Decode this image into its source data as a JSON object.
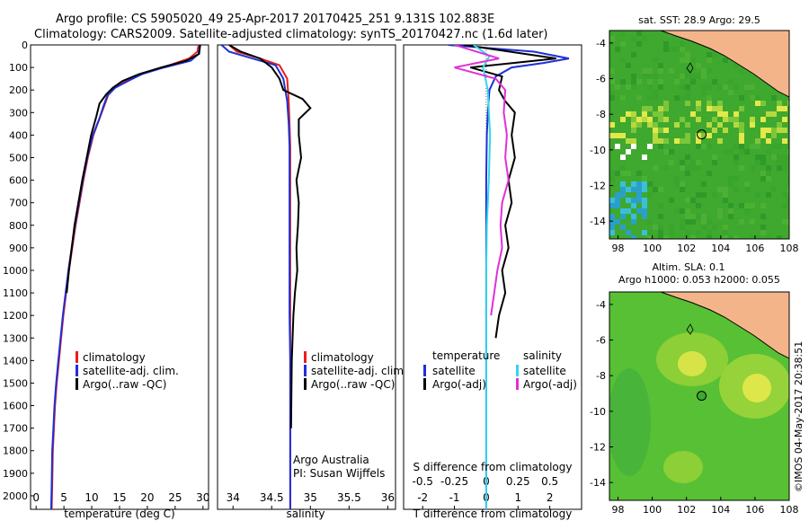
{
  "header": {
    "line1": "Argo profile: CS 5905020_49 25-Apr-2017 20170425_251 9.131S 102.883E",
    "line2": "Climatology: CARS2009. Satellite-adjusted climatology: synTS_20170427.nc (1.6d later)"
  },
  "footer": {
    "credit": "©IMOS 04-May-2017 20:38:51",
    "argo_line1": "Argo Australia",
    "argo_line2": "PI: Susan Wijffels"
  },
  "colors": {
    "climatology": "#e8201a",
    "satellite": "#1f2fd6",
    "argo": "#000000",
    "sat_salinity": "#33d6ee",
    "argo_salinity": "#e030d8",
    "land": "#f4b48a"
  },
  "chart_data": [
    {
      "type": "line",
      "panel": "temperature",
      "xlabel": "temperature (deg C)",
      "ylabel": "",
      "xlim": [
        -1,
        31
      ],
      "ylim": [
        2060,
        0
      ],
      "xticks": [
        0,
        5,
        10,
        15,
        20,
        25,
        30
      ],
      "yticks": [
        0,
        100,
        200,
        300,
        400,
        500,
        600,
        700,
        800,
        900,
        1000,
        1100,
        1200,
        1300,
        1400,
        1500,
        1600,
        1700,
        1800,
        1900,
        2000
      ],
      "legend": [
        "climatology",
        "satellite-adj. clim.",
        "Argo(..raw -QC)"
      ],
      "series": [
        {
          "name": "climatology",
          "color": "red",
          "x": [
            29.2,
            29.0,
            27.5,
            24,
            20,
            17,
            14.5,
            13,
            12.4,
            11.5,
            10.3,
            9.3,
            8.5,
            7.8,
            7.1,
            6.5,
            5.9,
            5.4,
            4.9,
            4.5,
            4.1,
            3.7,
            3.4,
            3.2,
            3.0,
            2.9,
            2.8
          ],
          "y": [
            0,
            30,
            60,
            90,
            120,
            150,
            180,
            220,
            260,
            320,
            400,
            500,
            600,
            700,
            800,
            900,
            1000,
            1100,
            1200,
            1300,
            1400,
            1500,
            1600,
            1700,
            1800,
            1950,
            2060
          ]
        },
        {
          "name": "satellite-adj. clim.",
          "color": "blue",
          "x": [
            29.4,
            29.2,
            27.8,
            23,
            19,
            16.5,
            14.2,
            12.8,
            12.2,
            11.4,
            10.2,
            9.2,
            8.4,
            7.7,
            7.0,
            6.4,
            5.8,
            5.3,
            4.8,
            4.4,
            4.0,
            3.6,
            3.3,
            3.1,
            2.9,
            2.8,
            2.7
          ],
          "y": [
            0,
            40,
            70,
            100,
            130,
            160,
            190,
            225,
            265,
            325,
            400,
            500,
            600,
            700,
            800,
            900,
            1000,
            1100,
            1200,
            1300,
            1400,
            1500,
            1600,
            1700,
            1800,
            1950,
            2060
          ]
        },
        {
          "name": "Argo(..raw -QC)",
          "color": "black",
          "x": [
            29.5,
            29.3,
            27.0,
            22.5,
            18.5,
            15.5,
            13.8,
            12.6,
            11.4,
            10.8,
            9.9,
            9.1,
            8.3,
            7.6,
            6.9,
            6.4,
            5.9,
            5.5
          ],
          "y": [
            0,
            40,
            70,
            100,
            130,
            160,
            190,
            220,
            260,
            320,
            400,
            500,
            600,
            700,
            800,
            900,
            1000,
            1100
          ]
        }
      ]
    },
    {
      "type": "line",
      "panel": "salinity",
      "xlabel": "salinity",
      "xlim": [
        33.8,
        36.1
      ],
      "ylim": [
        2060,
        0
      ],
      "xticks": [
        34,
        34.5,
        35,
        35.5,
        36
      ],
      "legend": [
        "climatology",
        "satellite-adj. clim.",
        "Argo(..raw -QC)"
      ],
      "series": [
        {
          "name": "climatology",
          "color": "red",
          "x": [
            33.95,
            34.05,
            34.35,
            34.6,
            34.7,
            34.72,
            34.73,
            34.74,
            34.74,
            34.74,
            34.74,
            34.74,
            34.74,
            34.74,
            34.74,
            34.74,
            34.74,
            34.74
          ],
          "y": [
            0,
            30,
            60,
            90,
            150,
            250,
            350,
            450,
            600,
            800,
            1000,
            1200,
            1400,
            1600,
            1800,
            1900,
            2000,
            2060
          ]
        },
        {
          "name": "satellite-adj. clim.",
          "color": "blue",
          "x": [
            33.85,
            33.95,
            34.25,
            34.55,
            34.65,
            34.7,
            34.72,
            34.73,
            34.73,
            34.73,
            34.73,
            34.73,
            34.74,
            34.74,
            34.74,
            34.74,
            34.74
          ],
          "y": [
            0,
            30,
            60,
            90,
            150,
            250,
            350,
            450,
            600,
            800,
            1000,
            1200,
            1400,
            1600,
            1800,
            1950,
            2060
          ]
        },
        {
          "name": "Argo(..raw -QC)",
          "color": "black",
          "x": [
            33.95,
            34.1,
            34.35,
            34.5,
            34.6,
            34.65,
            34.9,
            35.0,
            34.85,
            34.85,
            34.88,
            34.82,
            34.85,
            34.84,
            34.82,
            34.83,
            34.8,
            34.78,
            34.76,
            34.75
          ],
          "y": [
            0,
            30,
            60,
            100,
            150,
            200,
            240,
            280,
            330,
            400,
            500,
            600,
            700,
            800,
            900,
            1000,
            1100,
            1200,
            1400,
            1700
          ]
        }
      ]
    },
    {
      "type": "line",
      "panel": "difference",
      "xlabel": "T difference from climatology",
      "x2label": "S difference from climatology",
      "xlim": [
        -2.6,
        3.0
      ],
      "ylim": [
        2060,
        0
      ],
      "xticks": [
        -2,
        -1,
        0,
        1,
        2
      ],
      "x2ticks": [
        -0.5,
        -0.25,
        0,
        0.25,
        0.5
      ],
      "x2tick_labels": [
        "-0.5",
        "-0.25",
        "0",
        "0.25",
        "0.5"
      ],
      "legend_temperature_title": "temperature",
      "legend_salinity_title": "salinity",
      "legend": [
        "satellite",
        "Argo(-adj)",
        "satellite",
        "Argo(-adj)"
      ],
      "series": [
        {
          "name": "satellite",
          "group": "temperature",
          "color": "blue",
          "x": [
            -1.2,
            1.5,
            2.6,
            1.8,
            0.8,
            0.3,
            0.1,
            0.05,
            0.02,
            0,
            0,
            0,
            0,
            0,
            0,
            0
          ],
          "y": [
            0,
            30,
            60,
            80,
            100,
            140,
            200,
            300,
            400,
            600,
            800,
            1000,
            1300,
            1600,
            1900,
            2060
          ]
        },
        {
          "name": "Argo(-adj)",
          "group": "temperature",
          "color": "black",
          "x": [
            -0.7,
            2.2,
            -0.5,
            0.5,
            0.4,
            0.6,
            0.9,
            0.8,
            0.9,
            0.7,
            0.8,
            0.6,
            0.7,
            0.5,
            0.6,
            0.4,
            0.3
          ],
          "y": [
            0,
            60,
            100,
            140,
            200,
            250,
            300,
            400,
            500,
            600,
            700,
            800,
            900,
            1000,
            1100,
            1200,
            1300
          ]
        },
        {
          "name": "satellite",
          "group": "salinity",
          "color": "cyan",
          "x": [
            -0.4,
            0.1,
            -0.1,
            0.05,
            0.12,
            0.08,
            0.05,
            0.02,
            0.01,
            0,
            0,
            0,
            0,
            0
          ],
          "y": [
            0,
            50,
            100,
            200,
            400,
            600,
            700,
            800,
            900,
            1000,
            1200,
            1500,
            1800,
            2060
          ]
        },
        {
          "name": "Argo(-adj)",
          "group": "salinity",
          "color": "magenta",
          "x": [
            -1.0,
            0.4,
            -1.0,
            0.3,
            0.6,
            0.55,
            0.65,
            0.6,
            0.7,
            0.5,
            0.45,
            0.5,
            0.35,
            0.25,
            0.15
          ],
          "y": [
            0,
            60,
            100,
            150,
            200,
            300,
            400,
            500,
            600,
            700,
            800,
            900,
            1000,
            1100,
            1200
          ]
        }
      ]
    },
    {
      "type": "heatmap",
      "panel": "sst_map",
      "title": "sat. SST: 28.9 Argo: 29.5",
      "xlim": [
        97.5,
        108
      ],
      "ylim": [
        -15,
        -3.3
      ],
      "xticks": [
        98,
        100,
        102,
        104,
        106,
        108
      ],
      "yticks": [
        -4,
        -6,
        -8,
        -10,
        -12,
        -14
      ],
      "marker": {
        "lon": 102.883,
        "lat": -9.131
      }
    },
    {
      "type": "heatmap",
      "panel": "sla_map",
      "title": "Altim. SLA: 0.1",
      "subtitle": "Argo h1000: 0.053 h2000: 0.055",
      "xlim": [
        97.5,
        108
      ],
      "ylim": [
        -15,
        -3.3
      ],
      "xticks": [
        98,
        100,
        102,
        104,
        106,
        108
      ],
      "yticks": [
        -4,
        -6,
        -8,
        -10,
        -12,
        -14
      ],
      "marker": {
        "lon": 102.883,
        "lat": -9.131
      }
    }
  ]
}
